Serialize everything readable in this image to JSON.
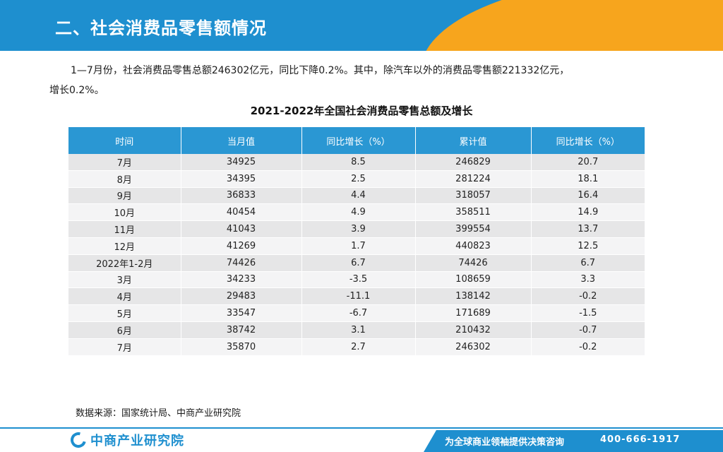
{
  "header": {
    "title": "二、社会消费品零售额情况"
  },
  "paragraph": {
    "line1": "1—7月份，社会消费品零售总额246302亿元，同比下降0.2%。其中，除汽车以外的消费品零售额221332亿元，",
    "line2": "增长0.2%。"
  },
  "table": {
    "title": "2021-2022年全国社会消费品零售总额及增长",
    "headers": [
      "时间",
      "当月值",
      "同比增长（%）",
      "累计值",
      "同比增长（%）"
    ],
    "rows": [
      [
        "7月",
        "34925",
        "8.5",
        "246829",
        "20.7"
      ],
      [
        "8月",
        "34395",
        "2.5",
        "281224",
        "18.1"
      ],
      [
        "9月",
        "36833",
        "4.4",
        "318057",
        "16.4"
      ],
      [
        "10月",
        "40454",
        "4.9",
        "358511",
        "14.9"
      ],
      [
        "11月",
        "41043",
        "3.9",
        "399554",
        "13.7"
      ],
      [
        "12月",
        "41269",
        "1.7",
        "440823",
        "12.5"
      ],
      [
        "2022年1-2月",
        "74426",
        "6.7",
        "74426",
        "6.7"
      ],
      [
        "3月",
        "34233",
        "-3.5",
        "108659",
        "3.3"
      ],
      [
        "4月",
        "29483",
        "-11.1",
        "138142",
        "-0.2"
      ],
      [
        "5月",
        "33547",
        "-6.7",
        "171689",
        "-1.5"
      ],
      [
        "6月",
        "38742",
        "3.1",
        "210432",
        "-0.7"
      ],
      [
        "7月",
        "35870",
        "2.7",
        "246302",
        "-0.2"
      ]
    ]
  },
  "source": "数据来源：国家统计局、中商产业研究院",
  "footer": {
    "logo_text": "中商产业研究院",
    "slogan": "为全球商业领袖提供决策咨询",
    "phone": "400-666-1917"
  },
  "colors": {
    "brand_blue": "#1e8fcf",
    "accent_orange": "#f7a51d",
    "table_header": "#2a97d3",
    "row_odd": "#e6e6e7",
    "row_even": "#f4f4f5"
  }
}
